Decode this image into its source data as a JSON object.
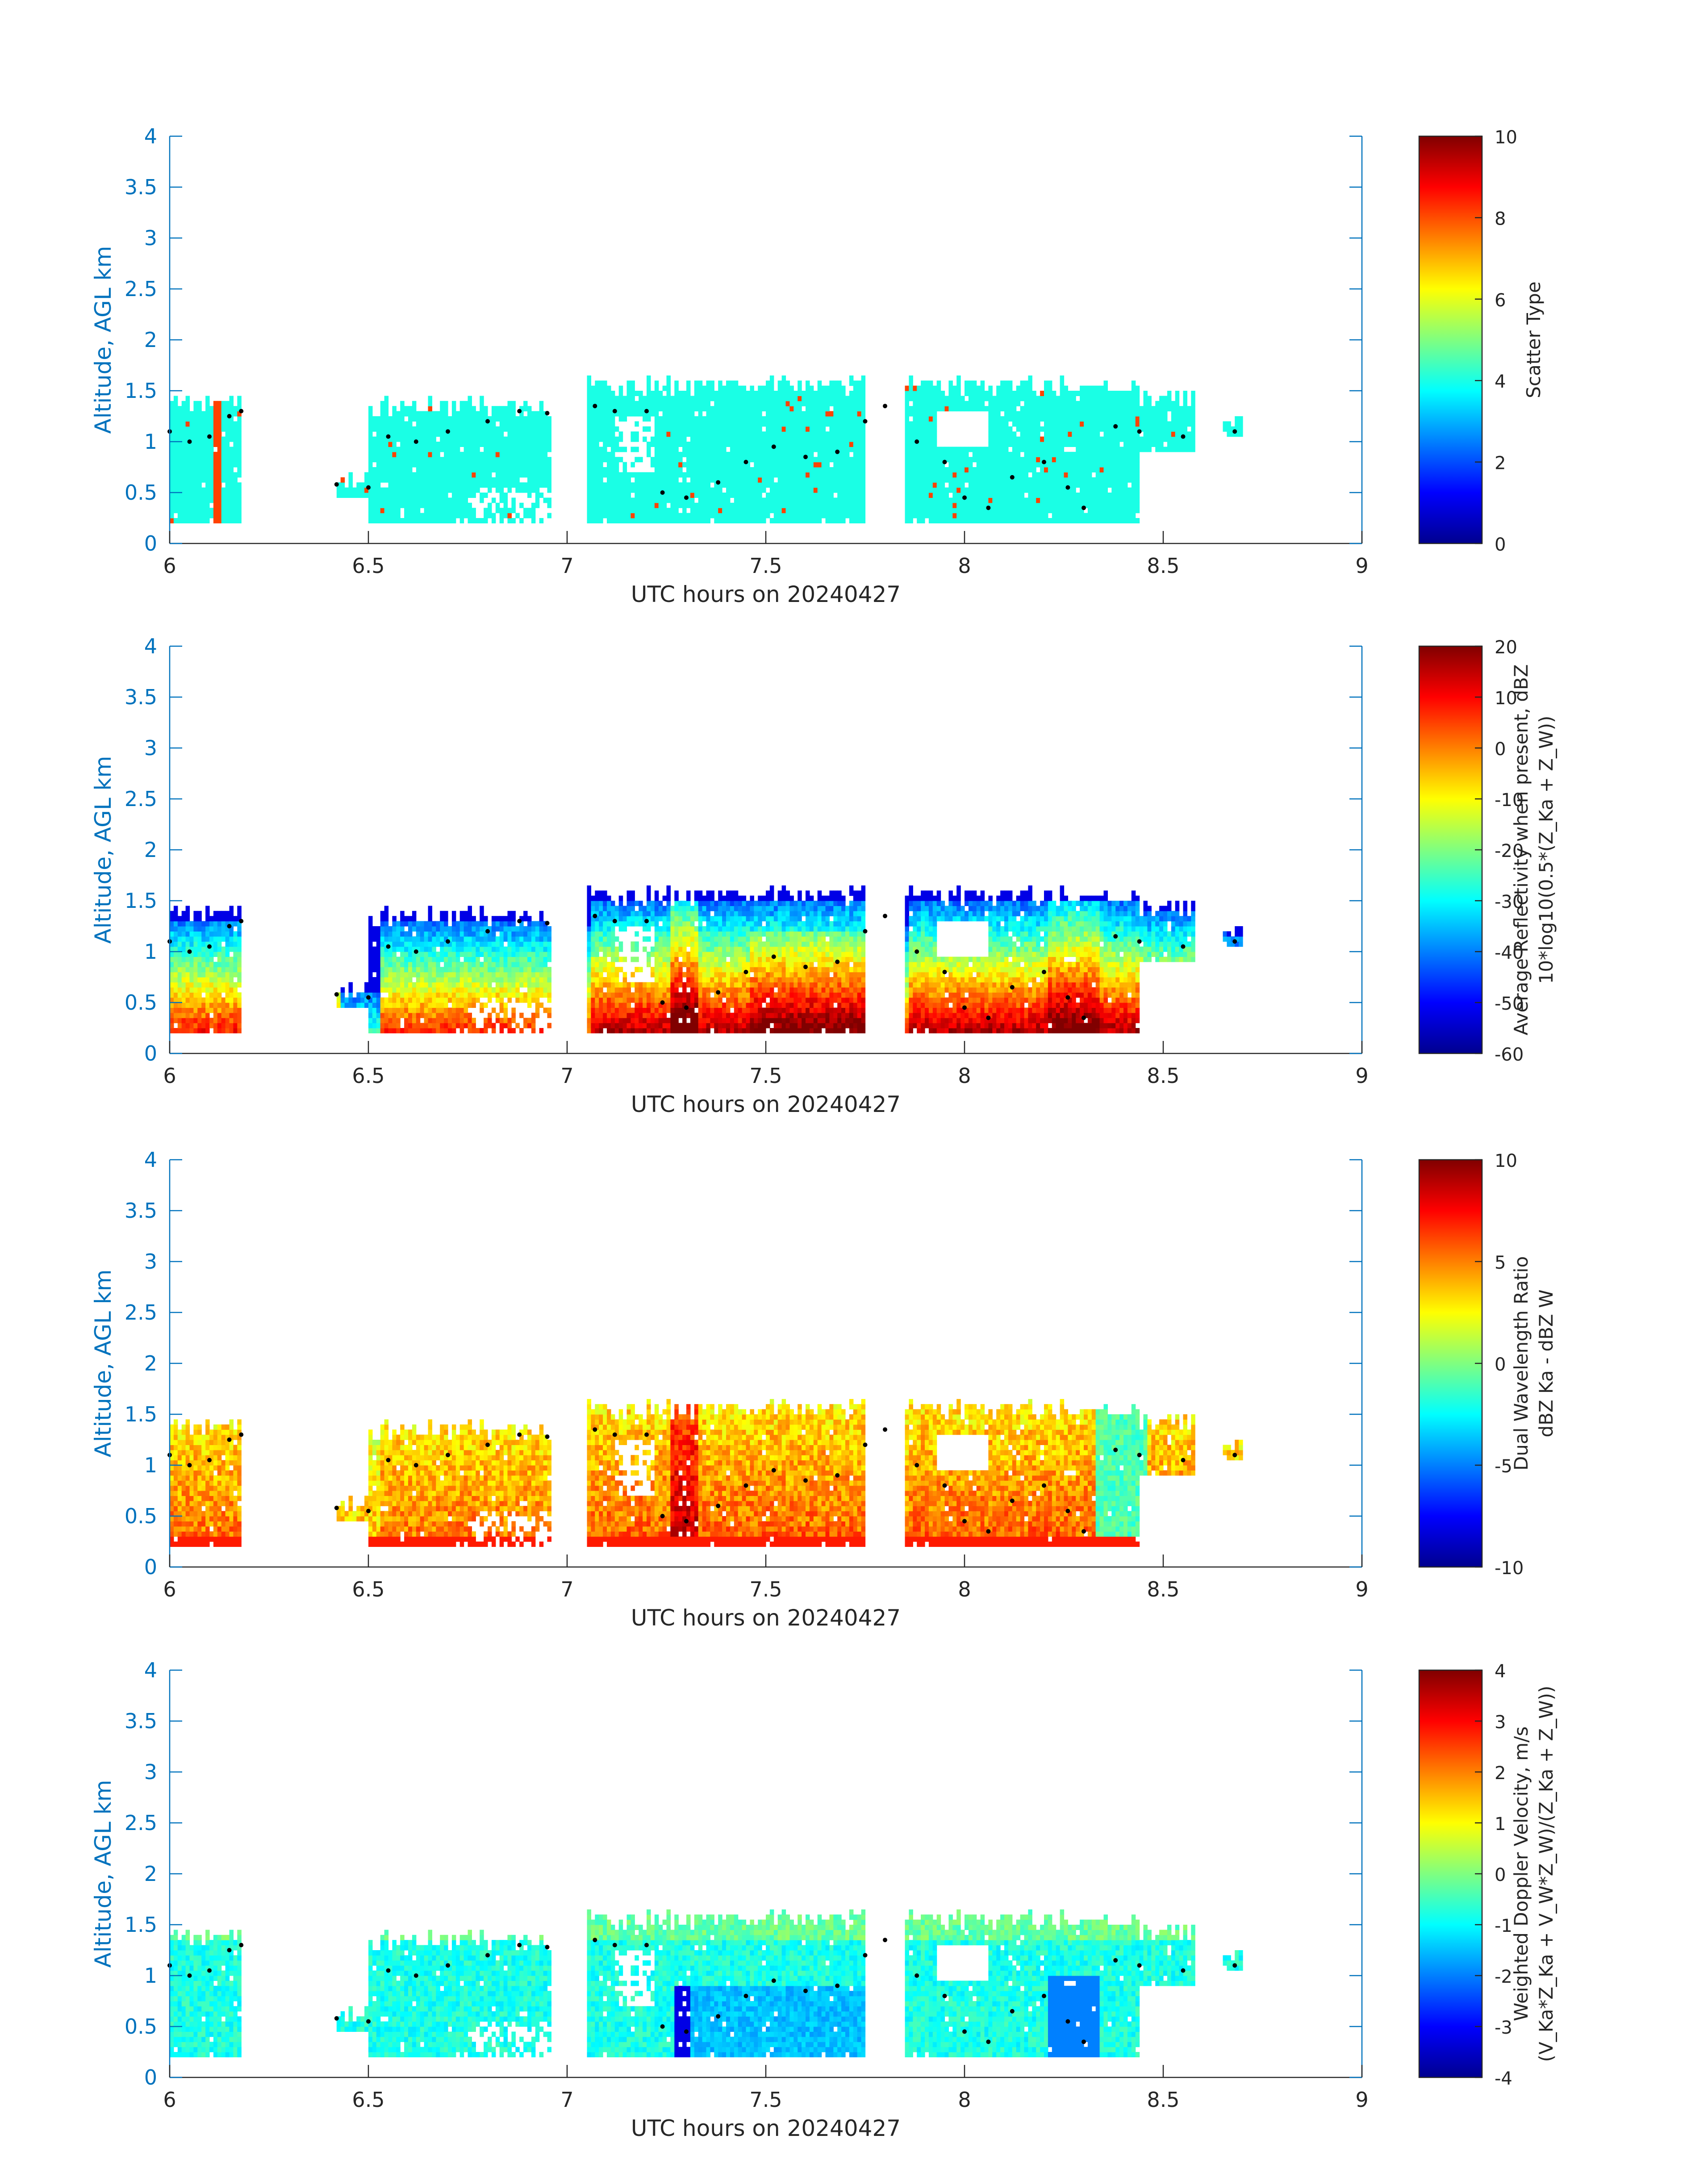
{
  "chart_data": [
    {
      "type": "heatmap",
      "xlabel": "UTC hours on 20240427",
      "ylabel": "Altitude, AGL km",
      "xlim": [
        6,
        9
      ],
      "ylim": [
        0,
        4
      ],
      "xticks": [
        6,
        6.5,
        7,
        7.5,
        8,
        8.5,
        9
      ],
      "yticks": [
        0,
        0.5,
        1,
        1.5,
        2,
        2.5,
        3,
        3.5,
        4
      ],
      "colorbar": {
        "label_lines": [
          "Scatter Type"
        ],
        "range": [
          0,
          10
        ],
        "ticks": [
          0,
          2,
          4,
          6,
          8,
          10
        ]
      },
      "field": "scatter"
    },
    {
      "type": "heatmap",
      "xlabel": "UTC hours on 20240427",
      "ylabel": "Altitude, AGL km",
      "xlim": [
        6,
        9
      ],
      "ylim": [
        0,
        4
      ],
      "xticks": [
        6,
        6.5,
        7,
        7.5,
        8,
        8.5,
        9
      ],
      "yticks": [
        0,
        0.5,
        1,
        1.5,
        2,
        2.5,
        3,
        3.5,
        4
      ],
      "colorbar": {
        "label_lines": [
          "Average Reflectivity when present, dBZ",
          "10*log10(0.5*(Z_Ka + Z_W))"
        ],
        "range": [
          -60,
          20
        ],
        "ticks": [
          -60,
          -50,
          -40,
          -30,
          -20,
          -10,
          0,
          10,
          20
        ]
      },
      "field": "reflectivity"
    },
    {
      "type": "heatmap",
      "xlabel": "UTC hours on 20240427",
      "ylabel": "Altitude, AGL km",
      "xlim": [
        6,
        9
      ],
      "ylim": [
        0,
        4
      ],
      "xticks": [
        6,
        6.5,
        7,
        7.5,
        8,
        8.5,
        9
      ],
      "yticks": [
        0,
        0.5,
        1,
        1.5,
        2,
        2.5,
        3,
        3.5,
        4
      ],
      "colorbar": {
        "label_lines": [
          "Dual Wavelength Ratio",
          "dBZ Ka - dBZ W"
        ],
        "range": [
          -10,
          10
        ],
        "ticks": [
          -10,
          -5,
          0,
          5,
          10
        ]
      },
      "field": "dwr"
    },
    {
      "type": "heatmap",
      "xlabel": "UTC hours on 20240427",
      "ylabel": "Altitude, AGL km",
      "xlim": [
        6,
        9
      ],
      "ylim": [
        0,
        4
      ],
      "xticks": [
        6,
        6.5,
        7,
        7.5,
        8,
        8.5,
        9
      ],
      "yticks": [
        0,
        0.5,
        1,
        1.5,
        2,
        2.5,
        3,
        3.5,
        4
      ],
      "colorbar": {
        "label_lines": [
          "Weighted Doppler Velocity, m/s",
          "(V_Ka*Z_Ka + V_W*Z_W)/(Z_Ka + Z_W))"
        ],
        "range": [
          -4,
          4
        ],
        "ticks": [
          -4,
          -3,
          -2,
          -1,
          0,
          1,
          2,
          3,
          4
        ]
      },
      "field": "velocity"
    }
  ],
  "cloud_extent": {
    "description_units": "x in UTC hours, y in km AGL",
    "segments": [
      {
        "x": [
          6.0,
          6.18
        ],
        "base": 0.2,
        "top": 1.38
      },
      {
        "x": [
          6.42,
          6.52
        ],
        "base": 0.45,
        "top": 0.65
      },
      {
        "x": [
          6.5,
          6.96
        ],
        "base": 0.2,
        "top": 1.35
      },
      {
        "x": [
          7.05,
          7.75
        ],
        "base": 0.2,
        "top": 1.55
      },
      {
        "x": [
          7.85,
          8.44
        ],
        "base": 0.2,
        "top": 1.55
      },
      {
        "x": [
          8.44,
          8.58
        ],
        "base": 0.9,
        "top": 1.45
      },
      {
        "x": [
          8.65,
          8.7
        ],
        "base": 1.05,
        "top": 1.2
      }
    ]
  },
  "black_dot_track": {
    "x": [
      6.0,
      6.05,
      6.1,
      6.15,
      6.18,
      6.42,
      6.5,
      6.55,
      6.62,
      6.7,
      6.8,
      6.88,
      6.95,
      7.07,
      7.12,
      7.2,
      7.24,
      7.3,
      7.38,
      7.45,
      7.52,
      7.6,
      7.68,
      7.75,
      7.8,
      7.88,
      7.95,
      8.0,
      8.06,
      8.12,
      8.2,
      8.26,
      8.3,
      8.38,
      8.44,
      8.55,
      8.68
    ],
    "y": [
      1.1,
      1.0,
      1.05,
      1.25,
      1.3,
      0.58,
      0.55,
      1.05,
      1.0,
      1.1,
      1.2,
      1.3,
      1.28,
      1.35,
      1.3,
      1.3,
      0.5,
      0.45,
      0.6,
      0.8,
      0.95,
      0.85,
      0.9,
      1.2,
      1.35,
      1.0,
      0.8,
      0.45,
      0.35,
      0.65,
      0.8,
      0.55,
      0.35,
      1.15,
      1.1,
      1.05,
      1.1
    ]
  }
}
